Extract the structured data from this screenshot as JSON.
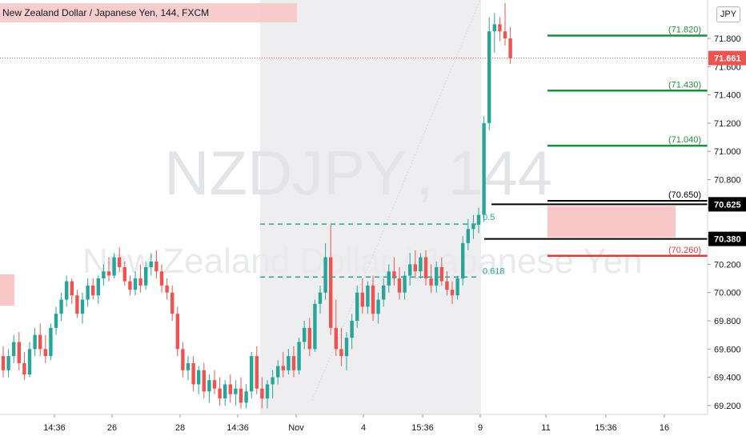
{
  "header": {
    "title": "New Zealand Dollar / Japanese Yen, 144, FXCM",
    "currency_badge": "JPY"
  },
  "watermark": {
    "symbol": "NZDJPY",
    "separator": ",",
    "interval": "144",
    "description": "New Zealand Dollar / Japanese Yen"
  },
  "colors": {
    "up": "#26a69a",
    "down": "#ef5350",
    "level_green": "#1e8e3e",
    "level_red": "#e53935",
    "level_black": "#000000",
    "price_badge": "#ef5350",
    "fib": "#26a69a",
    "shade": "#ebebee"
  },
  "chart_data": {
    "type": "candlestick",
    "symbol": "NZDJPY",
    "interval": "144",
    "y_axis": {
      "ticks": [
        "71.800",
        "71.600",
        "71.400",
        "71.200",
        "71.000",
        "70.800",
        "70.600",
        "70.400",
        "70.200",
        "70.000",
        "69.800",
        "69.600",
        "69.400",
        "69.200"
      ],
      "ylim": [
        69.18,
        72.05
      ]
    },
    "x_axis": {
      "ticks": [
        "14:36",
        "26",
        "28",
        "14:36",
        "Nov",
        "4",
        "15:36",
        "9",
        "11",
        "15:36",
        "16"
      ]
    },
    "current_price": "71.661",
    "levels": [
      {
        "label": "(71.820)",
        "value": 71.82,
        "color": "green"
      },
      {
        "label": "(71.430)",
        "value": 71.43,
        "color": "green"
      },
      {
        "label": "(71.040)",
        "value": 71.04,
        "color": "green"
      },
      {
        "label": "(70.650)",
        "value": 70.65,
        "color": "black"
      },
      {
        "label": "(70.260)",
        "value": 70.26,
        "color": "red"
      }
    ],
    "badges": [
      {
        "label": "70.625",
        "value": 70.625
      },
      {
        "label": "70.380",
        "value": 70.38
      }
    ],
    "fib_levels": [
      {
        "label": "0.5",
        "value": 70.485
      },
      {
        "label": "0.618",
        "value": 70.11
      }
    ],
    "candles": [
      {
        "o": 69.55,
        "h": 69.62,
        "l": 69.4,
        "c": 69.45
      },
      {
        "o": 69.45,
        "h": 69.6,
        "l": 69.4,
        "c": 69.55
      },
      {
        "o": 69.55,
        "h": 69.7,
        "l": 69.5,
        "c": 69.65
      },
      {
        "o": 69.65,
        "h": 69.72,
        "l": 69.45,
        "c": 69.5
      },
      {
        "o": 69.5,
        "h": 69.58,
        "l": 69.38,
        "c": 69.42
      },
      {
        "o": 69.42,
        "h": 69.65,
        "l": 69.4,
        "c": 69.6
      },
      {
        "o": 69.6,
        "h": 69.75,
        "l": 69.55,
        "c": 69.7
      },
      {
        "o": 69.7,
        "h": 69.78,
        "l": 69.55,
        "c": 69.6
      },
      {
        "o": 69.6,
        "h": 69.7,
        "l": 69.5,
        "c": 69.55
      },
      {
        "o": 69.55,
        "h": 69.78,
        "l": 69.52,
        "c": 69.75
      },
      {
        "o": 69.75,
        "h": 69.9,
        "l": 69.7,
        "c": 69.85
      },
      {
        "o": 69.85,
        "h": 70.0,
        "l": 69.8,
        "c": 69.95
      },
      {
        "o": 69.95,
        "h": 70.12,
        "l": 69.9,
        "c": 70.08
      },
      {
        "o": 70.08,
        "h": 70.1,
        "l": 69.92,
        "c": 69.98
      },
      {
        "o": 69.98,
        "h": 70.02,
        "l": 69.82,
        "c": 69.85
      },
      {
        "o": 69.85,
        "h": 70.0,
        "l": 69.78,
        "c": 69.95
      },
      {
        "o": 69.95,
        "h": 70.1,
        "l": 69.9,
        "c": 70.05
      },
      {
        "o": 70.05,
        "h": 70.1,
        "l": 69.95,
        "c": 69.98
      },
      {
        "o": 69.98,
        "h": 70.12,
        "l": 69.92,
        "c": 70.1
      },
      {
        "o": 70.1,
        "h": 70.2,
        "l": 70.05,
        "c": 70.15
      },
      {
        "o": 70.15,
        "h": 70.25,
        "l": 70.08,
        "c": 70.12
      },
      {
        "o": 70.12,
        "h": 70.28,
        "l": 70.1,
        "c": 70.25
      },
      {
        "o": 70.25,
        "h": 70.32,
        "l": 70.15,
        "c": 70.18
      },
      {
        "o": 70.18,
        "h": 70.22,
        "l": 70.05,
        "c": 70.08
      },
      {
        "o": 70.08,
        "h": 70.12,
        "l": 69.98,
        "c": 70.02
      },
      {
        "o": 70.02,
        "h": 70.15,
        "l": 69.98,
        "c": 70.1
      },
      {
        "o": 70.1,
        "h": 70.2,
        "l": 70.0,
        "c": 70.05
      },
      {
        "o": 70.05,
        "h": 70.22,
        "l": 70.02,
        "c": 70.18
      },
      {
        "o": 70.18,
        "h": 70.28,
        "l": 70.12,
        "c": 70.22
      },
      {
        "o": 70.22,
        "h": 70.3,
        "l": 70.1,
        "c": 70.15
      },
      {
        "o": 70.15,
        "h": 70.2,
        "l": 70.0,
        "c": 70.05
      },
      {
        "o": 70.05,
        "h": 70.1,
        "l": 69.95,
        "c": 70.0
      },
      {
        "o": 70.0,
        "h": 70.05,
        "l": 69.8,
        "c": 69.85
      },
      {
        "o": 69.85,
        "h": 69.9,
        "l": 69.55,
        "c": 69.6
      },
      {
        "o": 69.6,
        "h": 69.65,
        "l": 69.4,
        "c": 69.45
      },
      {
        "o": 69.45,
        "h": 69.55,
        "l": 69.38,
        "c": 69.5
      },
      {
        "o": 69.5,
        "h": 69.55,
        "l": 69.3,
        "c": 69.35
      },
      {
        "o": 69.35,
        "h": 69.48,
        "l": 69.28,
        "c": 69.45
      },
      {
        "o": 69.45,
        "h": 69.5,
        "l": 69.25,
        "c": 69.3
      },
      {
        "o": 69.3,
        "h": 69.42,
        "l": 69.22,
        "c": 69.38
      },
      {
        "o": 69.38,
        "h": 69.45,
        "l": 69.28,
        "c": 69.32
      },
      {
        "o": 69.32,
        "h": 69.4,
        "l": 69.2,
        "c": 69.25
      },
      {
        "o": 69.25,
        "h": 69.38,
        "l": 69.2,
        "c": 69.35
      },
      {
        "o": 69.35,
        "h": 69.42,
        "l": 69.22,
        "c": 69.28
      },
      {
        "o": 69.28,
        "h": 69.38,
        "l": 69.2,
        "c": 69.32
      },
      {
        "o": 69.32,
        "h": 69.4,
        "l": 69.18,
        "c": 69.22
      },
      {
        "o": 69.22,
        "h": 69.35,
        "l": 69.18,
        "c": 69.3
      },
      {
        "o": 69.3,
        "h": 69.58,
        "l": 69.25,
        "c": 69.55
      },
      {
        "o": 69.55,
        "h": 69.62,
        "l": 69.28,
        "c": 69.32
      },
      {
        "o": 69.32,
        "h": 69.4,
        "l": 69.18,
        "c": 69.25
      },
      {
        "o": 69.25,
        "h": 69.38,
        "l": 69.18,
        "c": 69.35
      },
      {
        "o": 69.35,
        "h": 69.45,
        "l": 69.25,
        "c": 69.4
      },
      {
        "o": 69.4,
        "h": 69.52,
        "l": 69.35,
        "c": 69.48
      },
      {
        "o": 69.48,
        "h": 69.58,
        "l": 69.4,
        "c": 69.45
      },
      {
        "o": 69.45,
        "h": 69.6,
        "l": 69.42,
        "c": 69.55
      },
      {
        "o": 69.55,
        "h": 69.62,
        "l": 69.4,
        "c": 69.45
      },
      {
        "o": 69.45,
        "h": 69.68,
        "l": 69.42,
        "c": 69.65
      },
      {
        "o": 69.65,
        "h": 69.8,
        "l": 69.6,
        "c": 69.75
      },
      {
        "o": 69.75,
        "h": 69.82,
        "l": 69.55,
        "c": 69.6
      },
      {
        "o": 69.6,
        "h": 69.95,
        "l": 69.58,
        "c": 69.92
      },
      {
        "o": 69.92,
        "h": 70.05,
        "l": 69.85,
        "c": 70.0
      },
      {
        "o": 70.0,
        "h": 70.35,
        "l": 69.95,
        "c": 70.25
      },
      {
        "o": 70.25,
        "h": 70.48,
        "l": 69.7,
        "c": 69.75
      },
      {
        "o": 69.75,
        "h": 69.95,
        "l": 69.55,
        "c": 69.6
      },
      {
        "o": 69.6,
        "h": 69.75,
        "l": 69.48,
        "c": 69.55
      },
      {
        "o": 69.55,
        "h": 69.72,
        "l": 69.45,
        "c": 69.68
      },
      {
        "o": 69.68,
        "h": 69.85,
        "l": 69.6,
        "c": 69.8
      },
      {
        "o": 69.8,
        "h": 70.05,
        "l": 69.75,
        "c": 70.0
      },
      {
        "o": 70.0,
        "h": 70.1,
        "l": 69.85,
        "c": 69.9
      },
      {
        "o": 69.9,
        "h": 70.08,
        "l": 69.85,
        "c": 70.05
      },
      {
        "o": 70.05,
        "h": 70.12,
        "l": 69.8,
        "c": 69.85
      },
      {
        "o": 69.85,
        "h": 70.0,
        "l": 69.78,
        "c": 69.95
      },
      {
        "o": 69.95,
        "h": 70.1,
        "l": 69.9,
        "c": 70.05
      },
      {
        "o": 70.05,
        "h": 70.2,
        "l": 70.0,
        "c": 70.15
      },
      {
        "o": 70.15,
        "h": 70.25,
        "l": 70.05,
        "c": 70.1
      },
      {
        "o": 70.1,
        "h": 70.18,
        "l": 69.95,
        "c": 70.0
      },
      {
        "o": 70.0,
        "h": 70.15,
        "l": 69.95,
        "c": 70.12
      },
      {
        "o": 70.12,
        "h": 70.28,
        "l": 70.05,
        "c": 70.2
      },
      {
        "o": 70.2,
        "h": 70.3,
        "l": 70.1,
        "c": 70.15
      },
      {
        "o": 70.15,
        "h": 70.28,
        "l": 70.1,
        "c": 70.25
      },
      {
        "o": 70.25,
        "h": 70.3,
        "l": 70.05,
        "c": 70.1
      },
      {
        "o": 70.1,
        "h": 70.2,
        "l": 70.0,
        "c": 70.05
      },
      {
        "o": 70.05,
        "h": 70.22,
        "l": 70.0,
        "c": 70.18
      },
      {
        "o": 70.18,
        "h": 70.25,
        "l": 70.05,
        "c": 70.08
      },
      {
        "o": 70.08,
        "h": 70.15,
        "l": 69.98,
        "c": 70.02
      },
      {
        "o": 70.02,
        "h": 70.08,
        "l": 69.92,
        "c": 69.98
      },
      {
        "o": 69.98,
        "h": 70.12,
        "l": 69.95,
        "c": 70.1
      },
      {
        "o": 70.1,
        "h": 70.4,
        "l": 70.05,
        "c": 70.35
      },
      {
        "o": 70.35,
        "h": 70.52,
        "l": 70.3,
        "c": 70.45
      },
      {
        "o": 70.45,
        "h": 70.55,
        "l": 70.38,
        "c": 70.48
      },
      {
        "o": 70.48,
        "h": 70.6,
        "l": 70.42,
        "c": 70.55
      },
      {
        "o": 70.55,
        "h": 71.25,
        "l": 70.5,
        "c": 71.2
      },
      {
        "o": 71.2,
        "h": 71.95,
        "l": 71.15,
        "c": 71.85
      },
      {
        "o": 71.85,
        "h": 71.98,
        "l": 71.7,
        "c": 71.9
      },
      {
        "o": 71.9,
        "h": 71.95,
        "l": 71.78,
        "c": 71.85
      },
      {
        "o": 71.85,
        "h": 72.05,
        "l": 71.75,
        "c": 71.8
      },
      {
        "o": 71.8,
        "h": 71.88,
        "l": 71.62,
        "c": 71.66
      }
    ]
  }
}
